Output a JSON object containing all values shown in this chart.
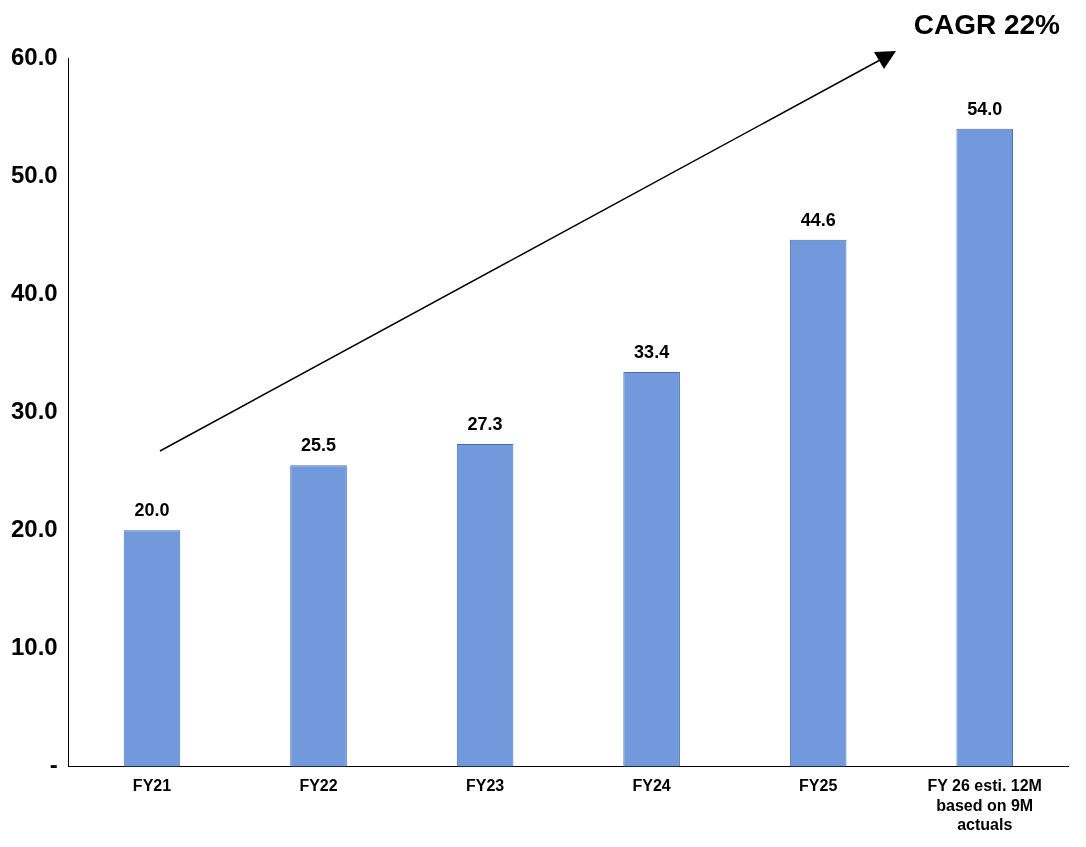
{
  "chart_data": {
    "type": "bar",
    "categories": [
      "FY21",
      "FY22",
      "FY23",
      "FY24",
      "FY25",
      "FY 26 esti. 12M based on 9M actuals"
    ],
    "values": [
      20.0,
      25.5,
      27.3,
      33.4,
      44.6,
      54.0
    ],
    "value_labels": [
      "20.0",
      "25.5",
      "27.3",
      "33.4",
      "44.6",
      "54.0"
    ],
    "color": "#7199dc",
    "ylim": [
      0,
      60
    ],
    "yticks": [
      {
        "value": 0,
        "label": "-"
      },
      {
        "value": 10,
        "label": "10.0"
      },
      {
        "value": 20,
        "label": "20.0"
      },
      {
        "value": 30,
        "label": "30.0"
      },
      {
        "value": 40,
        "label": "40.0"
      },
      {
        "value": 50,
        "label": "50.0"
      },
      {
        "value": 60,
        "label": "60.0"
      }
    ],
    "grid": false,
    "legend": false,
    "annotations": [
      "CAGR 22%"
    ]
  }
}
